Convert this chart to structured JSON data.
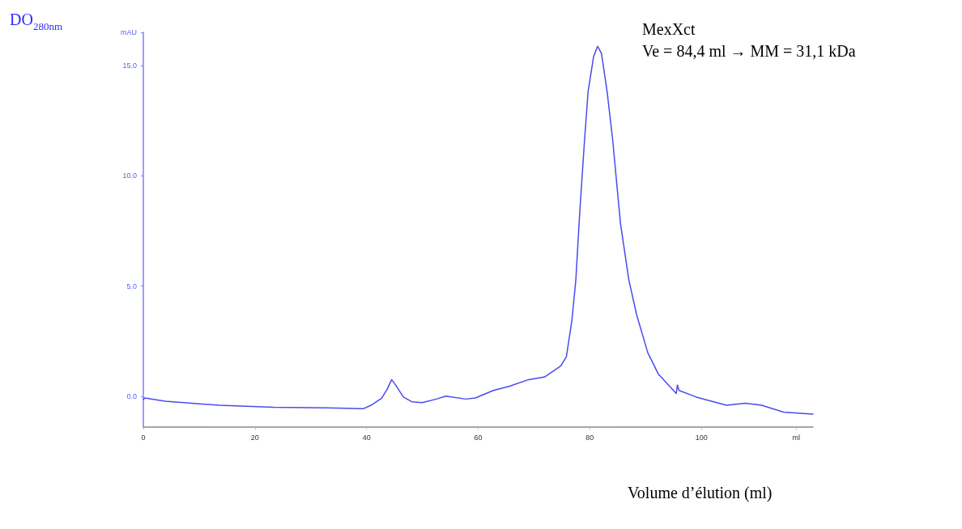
{
  "chart_data": {
    "type": "line",
    "ylabel": "DO$_{280nm}$",
    "xlabel": "Volume d’élution (ml)",
    "annotations": [
      "MexXct",
      "Ve = 84,4 ml → MM = 31,1 kDa"
    ],
    "xlim": [
      0,
      120
    ],
    "xticks": [
      0,
      20,
      40,
      60,
      80,
      100,
      {
        "value": 117,
        "label": "ml"
      }
    ],
    "ylim": [
      -1.4,
      16.5
    ],
    "yticks": [
      {
        "value": 0,
        "label": "0.0"
      },
      {
        "value": 5,
        "label": "5.0"
      },
      {
        "value": 10,
        "label": "10.0"
      },
      {
        "value": 15,
        "label": "15.0"
      },
      {
        "value": 16.5,
        "label": "mAU"
      }
    ],
    "grid": false,
    "marker": "none",
    "line_style": "solid",
    "series": [
      {
        "color": "#4a4aee",
        "x": [
          0,
          0.25,
          3.9,
          13.6,
          23.3,
          33,
          39.4,
          40.8,
          42.7,
          43.7,
          44.5,
          45.2,
          46.6,
          48.1,
          50,
          52.5,
          54.2,
          57.8,
          59.5,
          62.7,
          65.6,
          69,
          71.9,
          74.8,
          75.8,
          76.8,
          77.5,
          78.2,
          79,
          79.7,
          80.7,
          81.4,
          82.1,
          83.1,
          84.1,
          85.5,
          87,
          88.4,
          90.4,
          92.3,
          94.3,
          95.5,
          95.7,
          96,
          99.1,
          104.5,
          107.9,
          110.8,
          114.7,
          120
        ],
        "values": [
          -0.15,
          -0.08,
          -0.23,
          -0.41,
          -0.5,
          -0.53,
          -0.57,
          -0.41,
          -0.09,
          0.32,
          0.75,
          0.51,
          -0.04,
          -0.25,
          -0.29,
          -0.13,
          0,
          -0.13,
          -0.08,
          0.26,
          0.45,
          0.75,
          0.87,
          1.37,
          1.79,
          3.44,
          5.27,
          8.33,
          11.39,
          13.83,
          15.42,
          15.87,
          15.54,
          13.83,
          11.63,
          7.84,
          5.27,
          3.69,
          1.97,
          1.0,
          0.45,
          0.12,
          0.51,
          0.26,
          -0.04,
          -0.41,
          -0.32,
          -0.41,
          -0.72,
          -0.81
        ]
      }
    ]
  }
}
